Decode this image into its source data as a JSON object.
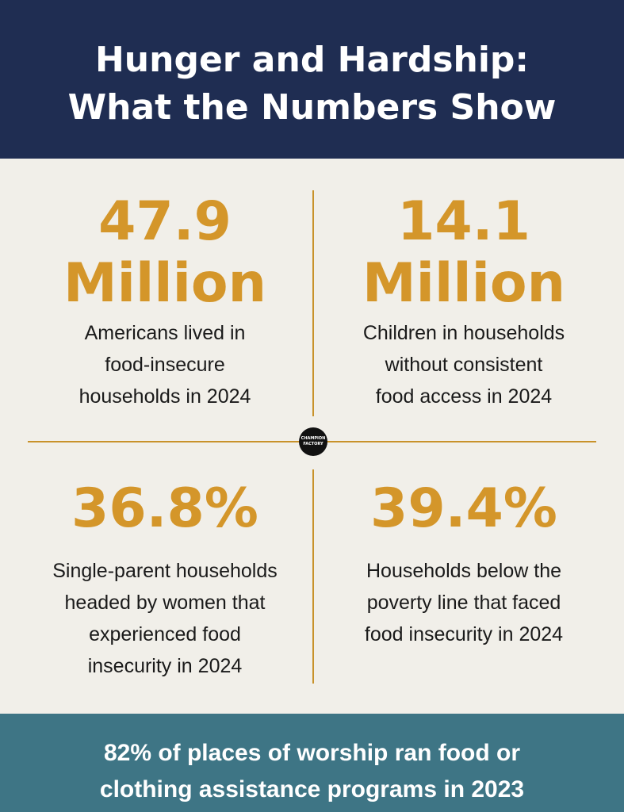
{
  "header": {
    "title": [
      "Hunger and Hardship:",
      "What the Numbers Show"
    ]
  },
  "stats": [
    {
      "value": [
        "47.9",
        "Million"
      ],
      "description": [
        "Americans lived in",
        "food-insecure",
        "households in 2024"
      ]
    },
    {
      "value": [
        "14.1",
        "Million"
      ],
      "description": [
        "Children in households",
        "without consistent",
        "food access in 2024"
      ]
    },
    {
      "value": [
        "36.8%"
      ],
      "description": [
        "Single-parent households",
        "headed by women that",
        "experienced food",
        "insecurity in 2024"
      ]
    },
    {
      "value": [
        "39.4%"
      ],
      "description": [
        "Households below the",
        "poverty line that faced",
        "food insecurity in 2024"
      ]
    }
  ],
  "logo": {
    "text": [
      "CHAMPION",
      "FACTORY"
    ]
  },
  "footer": {
    "text": [
      "82% of places of worship ran food or",
      "clothing assistance programs in 2023"
    ]
  }
}
